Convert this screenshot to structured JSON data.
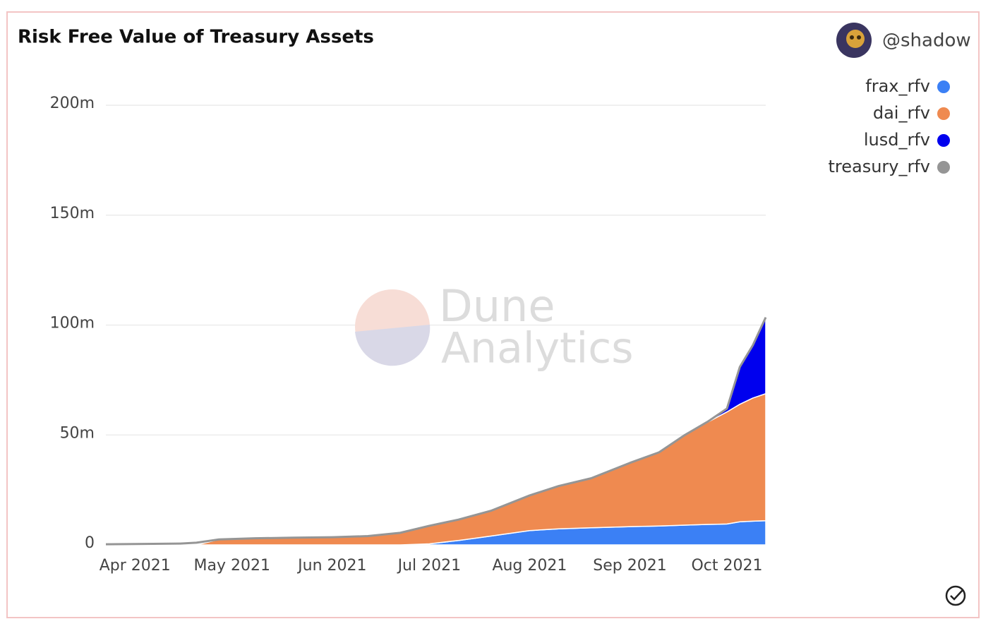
{
  "author": "@shadow",
  "chart_data": {
    "type": "area",
    "title": "Risk Free Value of Treasury Assets",
    "watermark": [
      "Dune",
      "Analytics"
    ],
    "stacked": true,
    "legend": "top-right",
    "grid": true,
    "x": [
      "2021-03-23",
      "2021-04-01",
      "2021-04-15",
      "2021-04-20",
      "2021-04-27",
      "2021-05-08",
      "2021-05-20",
      "2021-06-01",
      "2021-06-12",
      "2021-06-22",
      "2021-07-01",
      "2021-07-10",
      "2021-07-20",
      "2021-08-01",
      "2021-08-10",
      "2021-08-20",
      "2021-09-01",
      "2021-09-10",
      "2021-09-18",
      "2021-09-25",
      "2021-10-01",
      "2021-10-05",
      "2021-10-09",
      "2021-10-13"
    ],
    "xlim": [
      "2021-03-23",
      "2021-10-13"
    ],
    "xticks": [
      {
        "value": "2021-04",
        "label": "Apr 2021"
      },
      {
        "value": "2021-05",
        "label": "May 2021"
      },
      {
        "value": "2021-06",
        "label": "Jun 2021"
      },
      {
        "value": "2021-07",
        "label": "Jul 2021"
      },
      {
        "value": "2021-08",
        "label": "Aug 2021"
      },
      {
        "value": "2021-09",
        "label": "Sep 2021"
      },
      {
        "value": "2021-10",
        "label": "Oct 2021"
      }
    ],
    "ylim": [
      0,
      210
    ],
    "yticks": [
      0,
      {
        "value": 50,
        "label": "50m"
      },
      {
        "value": 100,
        "label": "100m"
      },
      {
        "value": 150,
        "label": "150m"
      },
      {
        "value": 200,
        "label": "200m"
      }
    ],
    "series": [
      {
        "name": "frax_rfv",
        "color": "#3b80f5",
        "values": [
          0,
          0,
          0,
          0,
          0,
          0,
          0,
          0,
          0,
          0,
          0.5,
          2,
          4,
          6.5,
          7.3,
          7.8,
          8.3,
          8.6,
          9.0,
          9.3,
          9.5,
          10.5,
          10.8,
          11
        ]
      },
      {
        "name": "dai_rfv",
        "color": "#ef8a50",
        "values": [
          0,
          0,
          0,
          0,
          2.5,
          3.0,
          3.3,
          3.5,
          4.0,
          5.5,
          8.2,
          9.5,
          11.5,
          16,
          19.5,
          22.5,
          29,
          33.5,
          41,
          46.5,
          51,
          53.5,
          56,
          57.8
        ]
      },
      {
        "name": "lusd_rfv",
        "color": "#0000ee",
        "values": [
          0,
          0,
          0,
          0,
          0,
          0,
          0,
          0,
          0,
          0,
          0,
          0,
          0,
          0,
          0,
          0,
          0,
          0,
          0,
          0.2,
          1.5,
          17,
          24,
          34.7
        ]
      },
      {
        "name": "treasury_rfv",
        "color": "#959595",
        "type": "line",
        "values": [
          0.3,
          0.4,
          0.6,
          1.0,
          2.5,
          3.0,
          3.3,
          3.5,
          4.0,
          5.5,
          8.7,
          11.5,
          15.5,
          22.5,
          26.8,
          30.3,
          37.3,
          42.1,
          50,
          56,
          62,
          81,
          90.8,
          103.5
        ]
      }
    ]
  }
}
